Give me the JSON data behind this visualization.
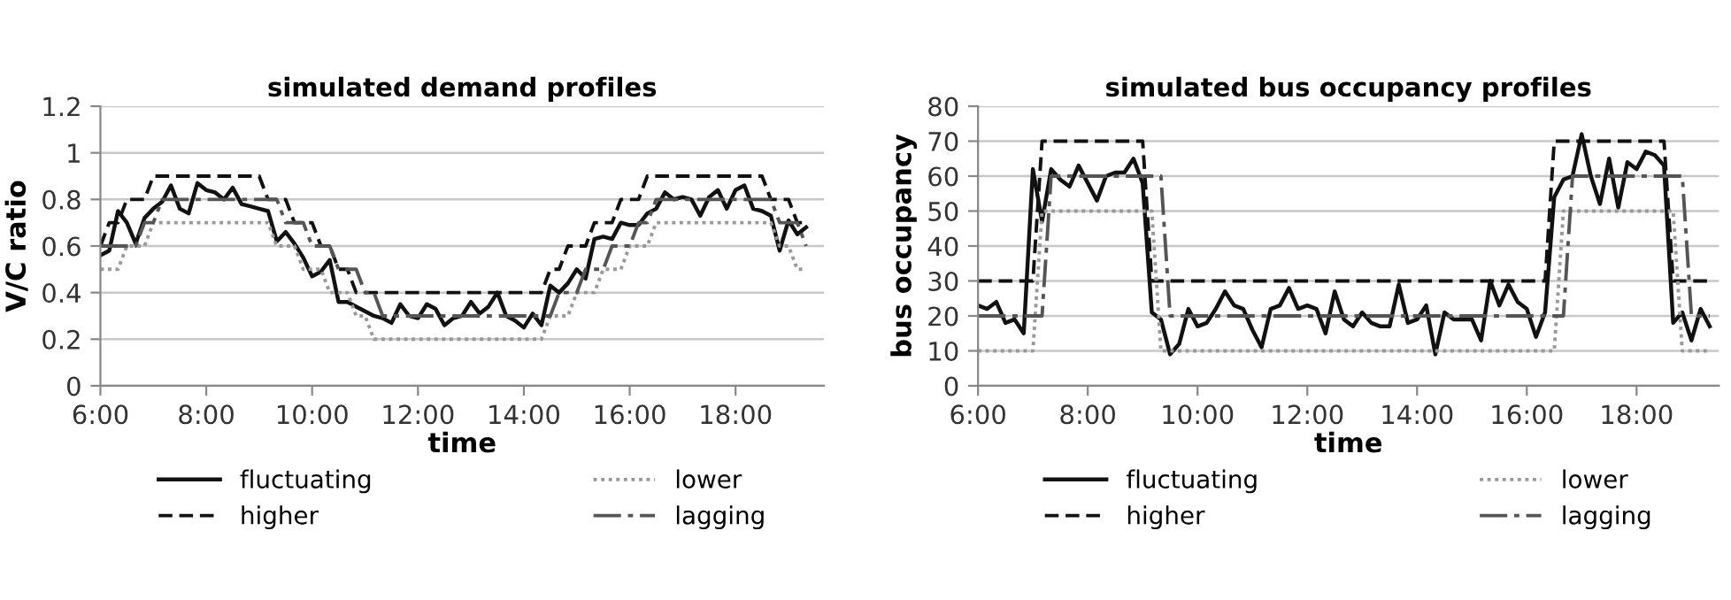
{
  "chart_data": [
    {
      "type": "line",
      "title": "simulated demand profiles",
      "xlabel": "time",
      "ylabel": "V/C ratio",
      "x": [
        6,
        6.167,
        6.333,
        6.5,
        6.667,
        6.833,
        7,
        7.167,
        7.333,
        7.5,
        7.667,
        7.833,
        8,
        8.167,
        8.333,
        8.5,
        8.667,
        8.833,
        9,
        9.167,
        9.333,
        9.5,
        9.667,
        9.833,
        10,
        10.167,
        10.333,
        10.5,
        10.667,
        10.833,
        11,
        11.167,
        11.333,
        11.5,
        11.667,
        11.833,
        12,
        12.167,
        12.333,
        12.5,
        12.667,
        12.833,
        13,
        13.167,
        13.333,
        13.5,
        13.667,
        13.833,
        14,
        14.167,
        14.333,
        14.5,
        14.667,
        14.833,
        15,
        15.167,
        15.333,
        15.5,
        15.667,
        15.833,
        16,
        16.167,
        16.333,
        16.5,
        16.667,
        16.833,
        17,
        17.167,
        17.333,
        17.5,
        17.667,
        17.833,
        18,
        18.167,
        18.333,
        18.5,
        18.667,
        18.833,
        19,
        19.167,
        19.333
      ],
      "series": [
        {
          "name": "fluctuating",
          "color": "#111111",
          "line_style": "solid",
          "values": [
            0.56,
            0.58,
            0.75,
            0.7,
            0.61,
            0.72,
            0.76,
            0.79,
            0.86,
            0.76,
            0.74,
            0.87,
            0.84,
            0.83,
            0.8,
            0.85,
            0.78,
            0.77,
            0.76,
            0.75,
            0.62,
            0.66,
            0.61,
            0.55,
            0.47,
            0.49,
            0.54,
            0.36,
            0.36,
            0.34,
            0.32,
            0.3,
            0.29,
            0.27,
            0.35,
            0.3,
            0.29,
            0.35,
            0.33,
            0.26,
            0.29,
            0.3,
            0.36,
            0.31,
            0.34,
            0.4,
            0.3,
            0.28,
            0.25,
            0.31,
            0.26,
            0.43,
            0.4,
            0.44,
            0.5,
            0.46,
            0.63,
            0.64,
            0.63,
            0.7,
            0.69,
            0.69,
            0.74,
            0.76,
            0.83,
            0.8,
            0.81,
            0.8,
            0.73,
            0.81,
            0.84,
            0.76,
            0.84,
            0.86,
            0.76,
            0.75,
            0.73,
            0.58,
            0.71,
            0.65,
            0.68
          ]
        },
        {
          "name": "higher",
          "color": "#111111",
          "line_style": "dashed",
          "values": [
            0.6,
            0.7,
            0.7,
            0.8,
            0.8,
            0.8,
            0.9,
            0.9,
            0.9,
            0.9,
            0.9,
            0.9,
            0.9,
            0.9,
            0.9,
            0.9,
            0.9,
            0.9,
            0.9,
            0.8,
            0.8,
            0.8,
            0.7,
            0.7,
            0.7,
            0.6,
            0.6,
            0.5,
            0.5,
            0.4,
            0.4,
            0.4,
            0.4,
            0.4,
            0.4,
            0.4,
            0.4,
            0.4,
            0.4,
            0.4,
            0.4,
            0.4,
            0.4,
            0.4,
            0.4,
            0.4,
            0.4,
            0.4,
            0.4,
            0.4,
            0.4,
            0.5,
            0.5,
            0.6,
            0.6,
            0.6,
            0.7,
            0.7,
            0.7,
            0.8,
            0.8,
            0.8,
            0.9,
            0.9,
            0.9,
            0.9,
            0.9,
            0.9,
            0.9,
            0.9,
            0.9,
            0.9,
            0.9,
            0.9,
            0.9,
            0.9,
            0.8,
            0.8,
            0.8,
            0.7,
            0.7
          ]
        },
        {
          "name": "lower",
          "color": "#999999",
          "line_style": "dotted",
          "values": [
            0.5,
            0.5,
            0.5,
            0.6,
            0.6,
            0.6,
            0.7,
            0.7,
            0.7,
            0.7,
            0.7,
            0.7,
            0.7,
            0.7,
            0.7,
            0.7,
            0.7,
            0.7,
            0.7,
            0.7,
            0.6,
            0.6,
            0.6,
            0.5,
            0.5,
            0.5,
            0.4,
            0.4,
            0.4,
            0.3,
            0.3,
            0.2,
            0.2,
            0.2,
            0.2,
            0.2,
            0.2,
            0.2,
            0.2,
            0.2,
            0.2,
            0.2,
            0.2,
            0.2,
            0.2,
            0.2,
            0.2,
            0.2,
            0.2,
            0.2,
            0.2,
            0.3,
            0.3,
            0.3,
            0.4,
            0.4,
            0.4,
            0.5,
            0.5,
            0.5,
            0.6,
            0.6,
            0.6,
            0.7,
            0.7,
            0.7,
            0.7,
            0.7,
            0.7,
            0.7,
            0.7,
            0.7,
            0.7,
            0.7,
            0.7,
            0.7,
            0.7,
            0.6,
            0.6,
            0.5,
            0.5
          ]
        },
        {
          "name": "lagging",
          "color": "#555555",
          "line_style": "dashdot",
          "values": [
            0.6,
            0.6,
            0.6,
            0.6,
            0.6,
            0.7,
            0.7,
            0.8,
            0.8,
            0.8,
            0.8,
            0.8,
            0.8,
            0.8,
            0.8,
            0.8,
            0.8,
            0.8,
            0.8,
            0.8,
            0.8,
            0.7,
            0.7,
            0.7,
            0.6,
            0.6,
            0.6,
            0.5,
            0.5,
            0.5,
            0.4,
            0.4,
            0.3,
            0.3,
            0.3,
            0.3,
            0.3,
            0.3,
            0.3,
            0.3,
            0.3,
            0.3,
            0.3,
            0.3,
            0.3,
            0.3,
            0.3,
            0.3,
            0.3,
            0.3,
            0.3,
            0.3,
            0.4,
            0.4,
            0.4,
            0.5,
            0.5,
            0.5,
            0.6,
            0.6,
            0.6,
            0.7,
            0.7,
            0.8,
            0.8,
            0.8,
            0.8,
            0.8,
            0.8,
            0.8,
            0.8,
            0.8,
            0.8,
            0.8,
            0.8,
            0.8,
            0.8,
            0.7,
            0.7,
            0.7,
            0.6
          ]
        }
      ],
      "xlim": [
        6,
        19.67
      ],
      "xticks": [
        {
          "value": 6,
          "label": "6:00"
        },
        {
          "value": 8,
          "label": "8:00"
        },
        {
          "value": 10,
          "label": "10:00"
        },
        {
          "value": 12,
          "label": "12:00"
        },
        {
          "value": 14,
          "label": "14:00"
        },
        {
          "value": 16,
          "label": "16:00"
        },
        {
          "value": 18,
          "label": "18:00"
        }
      ],
      "ylim": [
        0,
        1.2
      ],
      "yticks": [
        0,
        0.2,
        0.4,
        0.6,
        0.8,
        1,
        1.2
      ],
      "grid": "y",
      "legend": "bottom"
    },
    {
      "type": "line",
      "title": "simulated bus occupancy profiles",
      "xlabel": "time",
      "ylabel": "bus occupancy",
      "x": [
        6,
        6.167,
        6.333,
        6.5,
        6.667,
        6.833,
        7,
        7.167,
        7.333,
        7.5,
        7.667,
        7.833,
        8,
        8.167,
        8.333,
        8.5,
        8.667,
        8.833,
        9,
        9.167,
        9.333,
        9.5,
        9.667,
        9.833,
        10,
        10.167,
        10.333,
        10.5,
        10.667,
        10.833,
        11,
        11.167,
        11.333,
        11.5,
        11.667,
        11.833,
        12,
        12.167,
        12.333,
        12.5,
        12.667,
        12.833,
        13,
        13.167,
        13.333,
        13.5,
        13.667,
        13.833,
        14,
        14.167,
        14.333,
        14.5,
        14.667,
        14.833,
        15,
        15.167,
        15.333,
        15.5,
        15.667,
        15.833,
        16,
        16.167,
        16.333,
        16.5,
        16.667,
        16.833,
        17,
        17.167,
        17.333,
        17.5,
        17.667,
        17.833,
        18,
        18.167,
        18.333,
        18.5,
        18.667,
        18.833,
        19,
        19.167,
        19.333
      ],
      "series": [
        {
          "name": "fluctuating",
          "color": "#111111",
          "line_style": "solid",
          "values": [
            23,
            22,
            24,
            18,
            19,
            15,
            62,
            47,
            62,
            59,
            57,
            63,
            58,
            53,
            60,
            61,
            61,
            65,
            58,
            21,
            19,
            9,
            12,
            22,
            17,
            18,
            22,
            27,
            23,
            22,
            16,
            11,
            22,
            23,
            28,
            22,
            23,
            22,
            15,
            27,
            19,
            17,
            21,
            18,
            17,
            17,
            29,
            18,
            19,
            23,
            9,
            21,
            19,
            19,
            19,
            13,
            30,
            23,
            29,
            24,
            22,
            14,
            21,
            54,
            59,
            60,
            72,
            60,
            52,
            65,
            51,
            64,
            62,
            67,
            66,
            63,
            18,
            21,
            13,
            22,
            17
          ]
        },
        {
          "name": "higher",
          "color": "#111111",
          "line_style": "dashed",
          "values": [
            30,
            30,
            30,
            30,
            30,
            30,
            30,
            70,
            70,
            70,
            70,
            70,
            70,
            70,
            70,
            70,
            70,
            70,
            70,
            30,
            30,
            30,
            30,
            30,
            30,
            30,
            30,
            30,
            30,
            30,
            30,
            30,
            30,
            30,
            30,
            30,
            30,
            30,
            30,
            30,
            30,
            30,
            30,
            30,
            30,
            30,
            30,
            30,
            30,
            30,
            30,
            30,
            30,
            30,
            30,
            30,
            30,
            30,
            30,
            30,
            30,
            30,
            30,
            70,
            70,
            70,
            70,
            70,
            70,
            70,
            70,
            70,
            70,
            70,
            70,
            70,
            30,
            30,
            30,
            30,
            30
          ]
        },
        {
          "name": "lower",
          "color": "#999999",
          "line_style": "dotted",
          "values": [
            10,
            10,
            10,
            10,
            10,
            10,
            10,
            50,
            50,
            50,
            50,
            50,
            50,
            50,
            50,
            50,
            50,
            50,
            50,
            50,
            10,
            10,
            10,
            10,
            10,
            10,
            10,
            10,
            10,
            10,
            10,
            10,
            10,
            10,
            10,
            10,
            10,
            10,
            10,
            10,
            10,
            10,
            10,
            10,
            10,
            10,
            10,
            10,
            10,
            10,
            10,
            10,
            10,
            10,
            10,
            10,
            10,
            10,
            10,
            10,
            10,
            10,
            10,
            10,
            50,
            50,
            50,
            50,
            50,
            50,
            50,
            50,
            50,
            50,
            50,
            50,
            50,
            10,
            10,
            10,
            10
          ]
        },
        {
          "name": "lagging",
          "color": "#555555",
          "line_style": "dashdot",
          "values": [
            20,
            20,
            20,
            20,
            20,
            20,
            20,
            20,
            60,
            60,
            60,
            60,
            60,
            60,
            60,
            60,
            60,
            60,
            60,
            60,
            60,
            20,
            20,
            20,
            20,
            20,
            20,
            20,
            20,
            20,
            20,
            20,
            20,
            20,
            20,
            20,
            20,
            20,
            20,
            20,
            20,
            20,
            20,
            20,
            20,
            20,
            20,
            20,
            20,
            20,
            20,
            20,
            20,
            20,
            20,
            20,
            20,
            20,
            20,
            20,
            20,
            20,
            20,
            20,
            20,
            60,
            60,
            60,
            60,
            60,
            60,
            60,
            60,
            60,
            60,
            60,
            60,
            60,
            20,
            20,
            20
          ]
        }
      ],
      "xlim": [
        6,
        19.5
      ],
      "xticks": [
        {
          "value": 6,
          "label": "6:00"
        },
        {
          "value": 8,
          "label": "8:00"
        },
        {
          "value": 10,
          "label": "10:00"
        },
        {
          "value": 12,
          "label": "12:00"
        },
        {
          "value": 14,
          "label": "14:00"
        },
        {
          "value": 16,
          "label": "16:00"
        },
        {
          "value": 18,
          "label": "18:00"
        }
      ],
      "ylim": [
        0,
        80
      ],
      "yticks": [
        0,
        10,
        20,
        30,
        40,
        50,
        60,
        70,
        80
      ],
      "grid": "y",
      "legend": "bottom"
    }
  ]
}
